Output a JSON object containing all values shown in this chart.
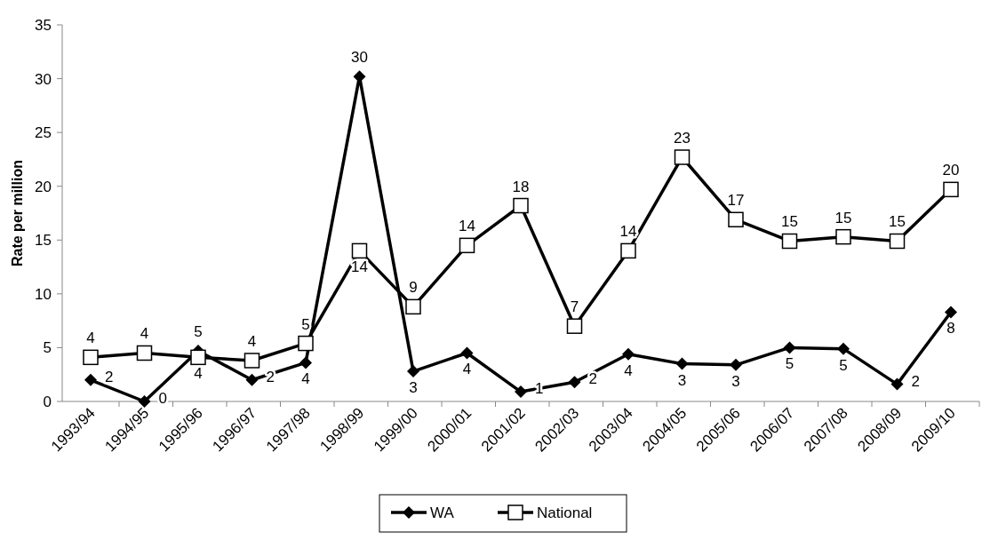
{
  "chart_data": {
    "type": "line",
    "ylabel": "Rate per million",
    "categories": [
      "1993/94",
      "1994/95",
      "1995/96",
      "1996/97",
      "1997/98",
      "1998/99",
      "1999/00",
      "2000/01",
      "2001/02",
      "2002/03",
      "2003/04",
      "2004/05",
      "2005/06",
      "2006/07",
      "2007/08",
      "2008/09",
      "2009/10"
    ],
    "series": [
      {
        "name": "WA",
        "color": "#000000",
        "marker": "diamond",
        "values": [
          2.0,
          0,
          4.7,
          2.0,
          3.6,
          30.2,
          2.8,
          4.5,
          0.9,
          1.8,
          4.4,
          3.5,
          3.4,
          5.0,
          4.9,
          1.6,
          8.3
        ],
        "value_labels": [
          "2",
          "0",
          "5",
          "2",
          "4",
          "30",
          "3",
          "4",
          "1",
          "2",
          "4",
          "3",
          "3",
          "5",
          "5",
          "2",
          "8"
        ]
      },
      {
        "name": "National",
        "color": "#000000",
        "marker": "square",
        "values": [
          4.1,
          4.5,
          4.1,
          3.8,
          5.4,
          14.0,
          8.8,
          14.5,
          18.2,
          7.0,
          14.0,
          22.7,
          16.9,
          14.9,
          15.3,
          14.9,
          19.7
        ],
        "value_labels": [
          "4",
          "4",
          "4",
          "4",
          "5",
          "14",
          "9",
          "14",
          "18",
          "7",
          "14",
          "23",
          "17",
          "15",
          "15",
          "15",
          "20"
        ]
      }
    ],
    "ylim": [
      0,
      35
    ],
    "yticks": [
      0,
      5,
      10,
      15,
      20,
      25,
      30,
      35
    ],
    "grid": false,
    "legend": "bottom",
    "line_style": "solid"
  }
}
